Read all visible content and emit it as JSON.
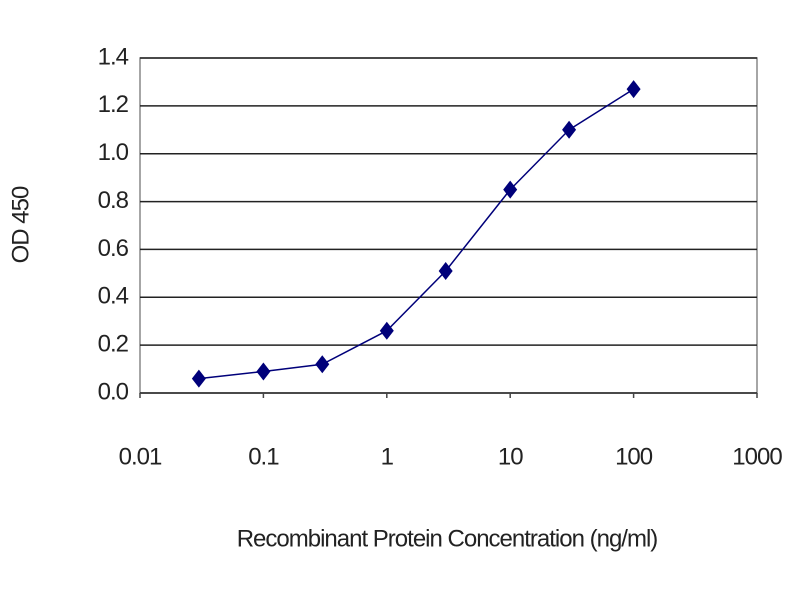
{
  "chart_data": {
    "type": "line",
    "x_label": "Recombinant Protein Concentration (ng/ml)",
    "y_label": "OD 450",
    "x": [
      0.03,
      0.1,
      0.3,
      1,
      3,
      10,
      30,
      100
    ],
    "values": [
      0.06,
      0.09,
      0.12,
      0.26,
      0.51,
      0.85,
      1.1,
      1.27
    ],
    "color": "#00007a",
    "xscale": "log",
    "xlim": [
      0.01,
      1000
    ],
    "xticks": [
      0.01,
      0.1,
      1,
      10,
      100,
      1000
    ],
    "ylim": [
      0,
      1.4
    ],
    "yticks": [
      {
        "value": 0,
        "label": "0.0"
      },
      0.2,
      0.4,
      0.6,
      0.8,
      {
        "value": 1,
        "label": "1.0"
      },
      1.2,
      1.4
    ],
    "grid": true
  }
}
